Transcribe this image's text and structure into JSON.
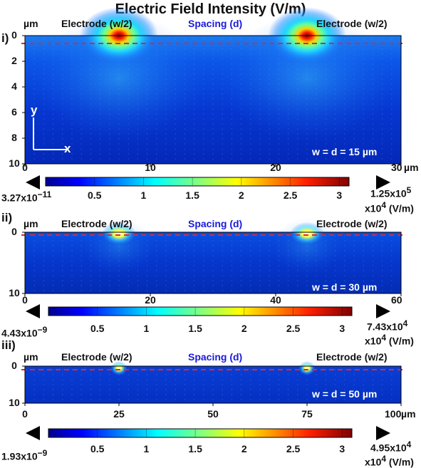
{
  "title": "Electric Field Intensity (V/m)",
  "colors": {
    "dashed_line": "#e0282a",
    "colormap": [
      "#00008f",
      "#0000ff",
      "#0080ff",
      "#00ffff",
      "#80ff80",
      "#ffff00",
      "#ff8000",
      "#ff0000",
      "#800000"
    ],
    "spacing_label": "#1a1adc"
  },
  "chart_data": [
    {
      "type": "heatmap",
      "panel_label": "i)",
      "y_unit": "µm",
      "x_unit": "µm",
      "header_labels": [
        "Electrode (w/2)",
        "Spacing (d)",
        "Electrode (w/2)"
      ],
      "axis_labels": {
        "y": "y",
        "x": "x"
      },
      "annotation": "w = d =  15 µm",
      "xlim": [
        0,
        30
      ],
      "ylim": [
        0,
        10
      ],
      "x_ticks": [
        "0",
        "10",
        "20",
        "30"
      ],
      "y_ticks": [
        "0",
        "2",
        "4",
        "6",
        "8",
        "10"
      ],
      "electrode_edges_x": [
        7.5,
        22.5
      ],
      "colorbar": {
        "ticks": [
          "0.5",
          "1",
          "1.5",
          "2",
          "2.5",
          "3"
        ],
        "tick_values": [
          0.5,
          1,
          1.5,
          2,
          2.5,
          3
        ],
        "range": [
          0,
          3.1
        ],
        "min_label": "3.27x10",
        "min_exp": "−11",
        "max_label": "1.25x10",
        "max_exp": "5",
        "scale_label": "x10",
        "scale_exp": "4",
        "scale_unit": " (V/m)"
      }
    },
    {
      "type": "heatmap",
      "panel_label": "ii)",
      "y_unit": "µm",
      "header_labels": [
        "Electrode (w/2)",
        "Spacing (d)",
        "Electrode (w/2)"
      ],
      "annotation": "w = d =  30 µm",
      "xlim": [
        0,
        60
      ],
      "ylim": [
        0,
        10
      ],
      "x_ticks": [
        "0",
        "20",
        "40",
        "60"
      ],
      "y_ticks": [
        "0",
        "10"
      ],
      "electrode_edges_x": [
        15,
        45
      ],
      "colorbar": {
        "ticks": [
          "0.5",
          "1",
          "1.5",
          "2",
          "2.5",
          "3"
        ],
        "tick_values": [
          0.5,
          1,
          1.5,
          2,
          2.5,
          3
        ],
        "range": [
          0,
          3.1
        ],
        "min_label": "4.43x10",
        "min_exp": "−9",
        "max_label": "7.43x10",
        "max_exp": "4",
        "scale_label": "x10",
        "scale_exp": "4",
        "scale_unit": " (V/m)"
      }
    },
    {
      "type": "heatmap",
      "panel_label": "iii)",
      "y_unit": "µm",
      "x_unit": "µm",
      "header_labels": [
        "Electrode (w/2)",
        "Spacing (d)",
        "Electrode (w/2)"
      ],
      "annotation": "w = d =  50 µm",
      "xlim": [
        0,
        100
      ],
      "ylim": [
        0,
        10
      ],
      "x_ticks": [
        "0",
        "25",
        "50",
        "75",
        "100"
      ],
      "y_ticks": [
        "0",
        "10"
      ],
      "electrode_edges_x": [
        25,
        75
      ],
      "colorbar": {
        "ticks": [
          "0.5",
          "1",
          "1.5",
          "2",
          "2.5",
          "3"
        ],
        "tick_values": [
          0.5,
          1,
          1.5,
          2,
          2.5,
          3
        ],
        "range": [
          0,
          3.1
        ],
        "min_label": "1.93x10",
        "min_exp": "−9",
        "max_label": "4.95x10",
        "max_exp": "4",
        "scale_label": "x10",
        "scale_exp": "4",
        "scale_unit": " (V/m)"
      }
    }
  ]
}
